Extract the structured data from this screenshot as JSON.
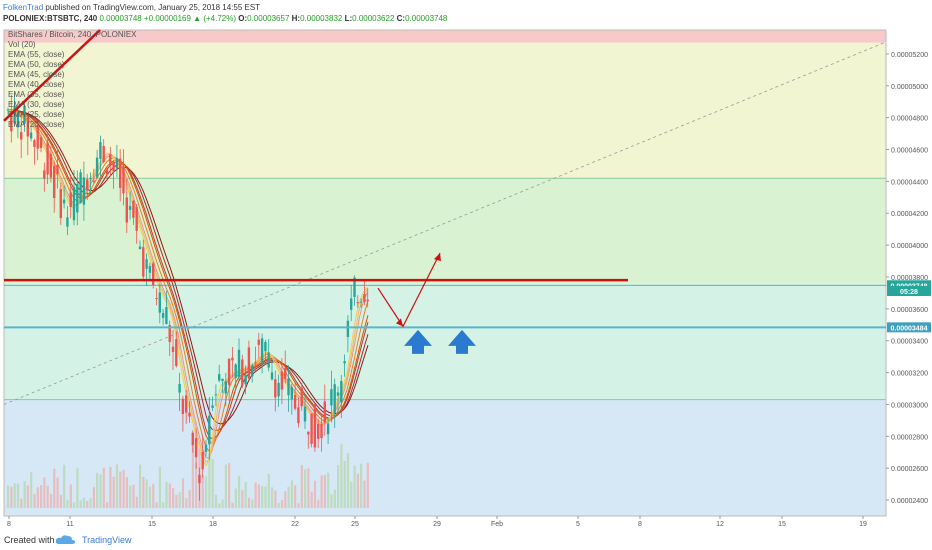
{
  "header": {
    "author": "FolkenTrad",
    "published": "published on TradingView.com, January 25, 2018 14:55 EST",
    "symbol": "POLONIEX:BTSBTC, 240",
    "open_label": "O:",
    "open": "0.00003657",
    "high_label": "H:",
    "high": "0.00003832",
    "low_label": "L:",
    "low": "0.00003622",
    "close_label": "C:",
    "close": "0.00003748",
    "change": "+0.00000169",
    "change_pct": "(+4.72%)"
  },
  "legend": {
    "title": "BitShares / Bitcoin, 240, POLONIEX",
    "items": [
      "Vol (20)",
      "EMA (55, close)",
      "EMA (50, close)",
      "EMA (45, close)",
      "EMA (40, close)",
      "EMA (35, close)",
      "EMA (30, close)",
      "EMA (25, close)",
      "EMA (20, close)"
    ]
  },
  "chart_data": {
    "type": "candlestick",
    "x_ticks": [
      "8",
      "11",
      "15",
      "18",
      "22",
      "25",
      "29",
      "Feb",
      "5",
      "8",
      "12",
      "15",
      "19"
    ],
    "y_ticks": [
      "0.00005200",
      "0.00005000",
      "0.00004800",
      "0.00004600",
      "0.00004400",
      "0.00004200",
      "0.00004000",
      "0.00003800",
      "0.00003600",
      "0.00003400",
      "0.00003200",
      "0.00003000",
      "0.00002800",
      "0.00002600",
      "0.00002400"
    ],
    "ylim": [
      2.3e-05,
      5.35e-05
    ],
    "last_price": "0.00003748",
    "countdown": "05:28",
    "support_label": "0.00003484",
    "resistance": 3.78e-05,
    "support": 3.484e-05,
    "zones": [
      {
        "from": 5.27e-05,
        "to": 5.35e-05,
        "color": "#f7c9c9"
      },
      {
        "from": 4.42e-05,
        "to": 5.27e-05,
        "color": "#f1f5d2"
      },
      {
        "from": 3.76e-05,
        "to": 4.42e-05,
        "color": "#d9f3d2"
      },
      {
        "from": 3.03e-05,
        "to": 3.76e-05,
        "color": "#d4f3e6"
      },
      {
        "from": 2.3e-05,
        "to": 3.03e-05,
        "color": "#d6e8f6"
      }
    ],
    "colors": {
      "up": "#26a69a",
      "down": "#ef5350",
      "resistance": "#cc1111",
      "support": "#5bb5c8",
      "arrows": "#2a7bd0"
    }
  },
  "footer": {
    "created": "Created with",
    "brand": "TradingView"
  }
}
